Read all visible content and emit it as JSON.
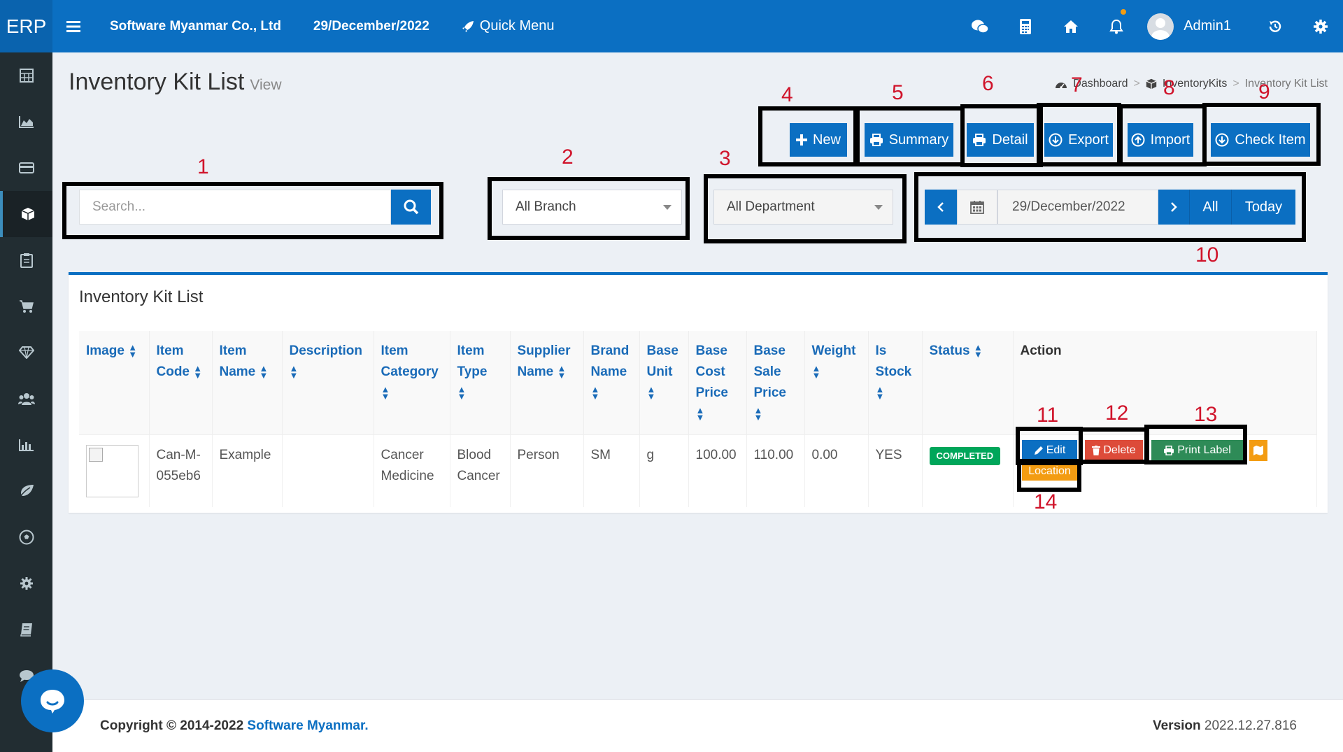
{
  "header": {
    "logo": "ERP",
    "company": "Software Myanmar Co., Ltd",
    "date": "29/December/2022",
    "quick_menu": "Quick Menu",
    "user": "Admin1"
  },
  "page": {
    "title": "Inventory Kit List",
    "subtitle": "View",
    "breadcrumb": [
      "Dashboard",
      "InventoryKits",
      "Inventory Kit List"
    ]
  },
  "actions": {
    "new": "New",
    "summary": "Summary",
    "detail": "Detail",
    "export": "Export",
    "import": "Import",
    "check_item": "Check Item"
  },
  "filters": {
    "search_placeholder": "Search...",
    "branch": "All Branch",
    "department": "All Department",
    "date": "29/December/2022",
    "all": "All",
    "today": "Today"
  },
  "card": {
    "title": "Inventory Kit List"
  },
  "table": {
    "headers": {
      "image": "Image",
      "item_code_1": "Item",
      "item_code_2": "Code",
      "item_name_1": "Item",
      "item_name_2": "Name",
      "description": "Description",
      "item_category_1": "Item",
      "item_category_2": "Category",
      "item_type_1": "Item",
      "item_type_2": "Type",
      "supplier_1": "Supplier",
      "supplier_2": "Name",
      "brand_1": "Brand",
      "brand_2": "Name",
      "base_unit_1": "Base",
      "base_unit_2": "Unit",
      "base_cost_1": "Base",
      "base_cost_2": "Cost",
      "base_cost_3": "Price",
      "base_sale_1": "Base",
      "base_sale_2": "Sale",
      "base_sale_3": "Price",
      "weight": "Weight",
      "is_stock_1": "Is",
      "is_stock_2": "Stock",
      "status": "Status",
      "action": "Action"
    },
    "row": {
      "item_code_1": "Can-M-",
      "item_code_2": "055eb6",
      "item_name": "Example",
      "description": "",
      "category_1": "Cancer",
      "category_2": "Medicine",
      "type_1": "Blood",
      "type_2": "Cancer",
      "supplier": "Person",
      "brand": "SM",
      "base_unit": "g",
      "base_cost": "100.00",
      "base_sale": "110.00",
      "weight": "0.00",
      "is_stock": "YES",
      "status": "COMPLETED",
      "edit": "Edit",
      "delete": "Delete",
      "print_label": "Print Label",
      "location": "Location"
    }
  },
  "annotations": [
    "1",
    "2",
    "3",
    "4",
    "5",
    "6",
    "7",
    "8",
    "9",
    "10",
    "11",
    "12",
    "13",
    "14"
  ],
  "footer": {
    "copyright": "Copyright © 2014-2022",
    "brand": "Software Myanmar.",
    "version_label": "Version",
    "version": "2022.12.27.816"
  },
  "colors": {
    "primary": "#0b6fc2",
    "sidebar": "#222d32",
    "success": "#00a65a",
    "danger": "#dd4b39",
    "print": "#2e8b57",
    "warning": "#f39c12",
    "annotation_number": "#d0142b"
  }
}
